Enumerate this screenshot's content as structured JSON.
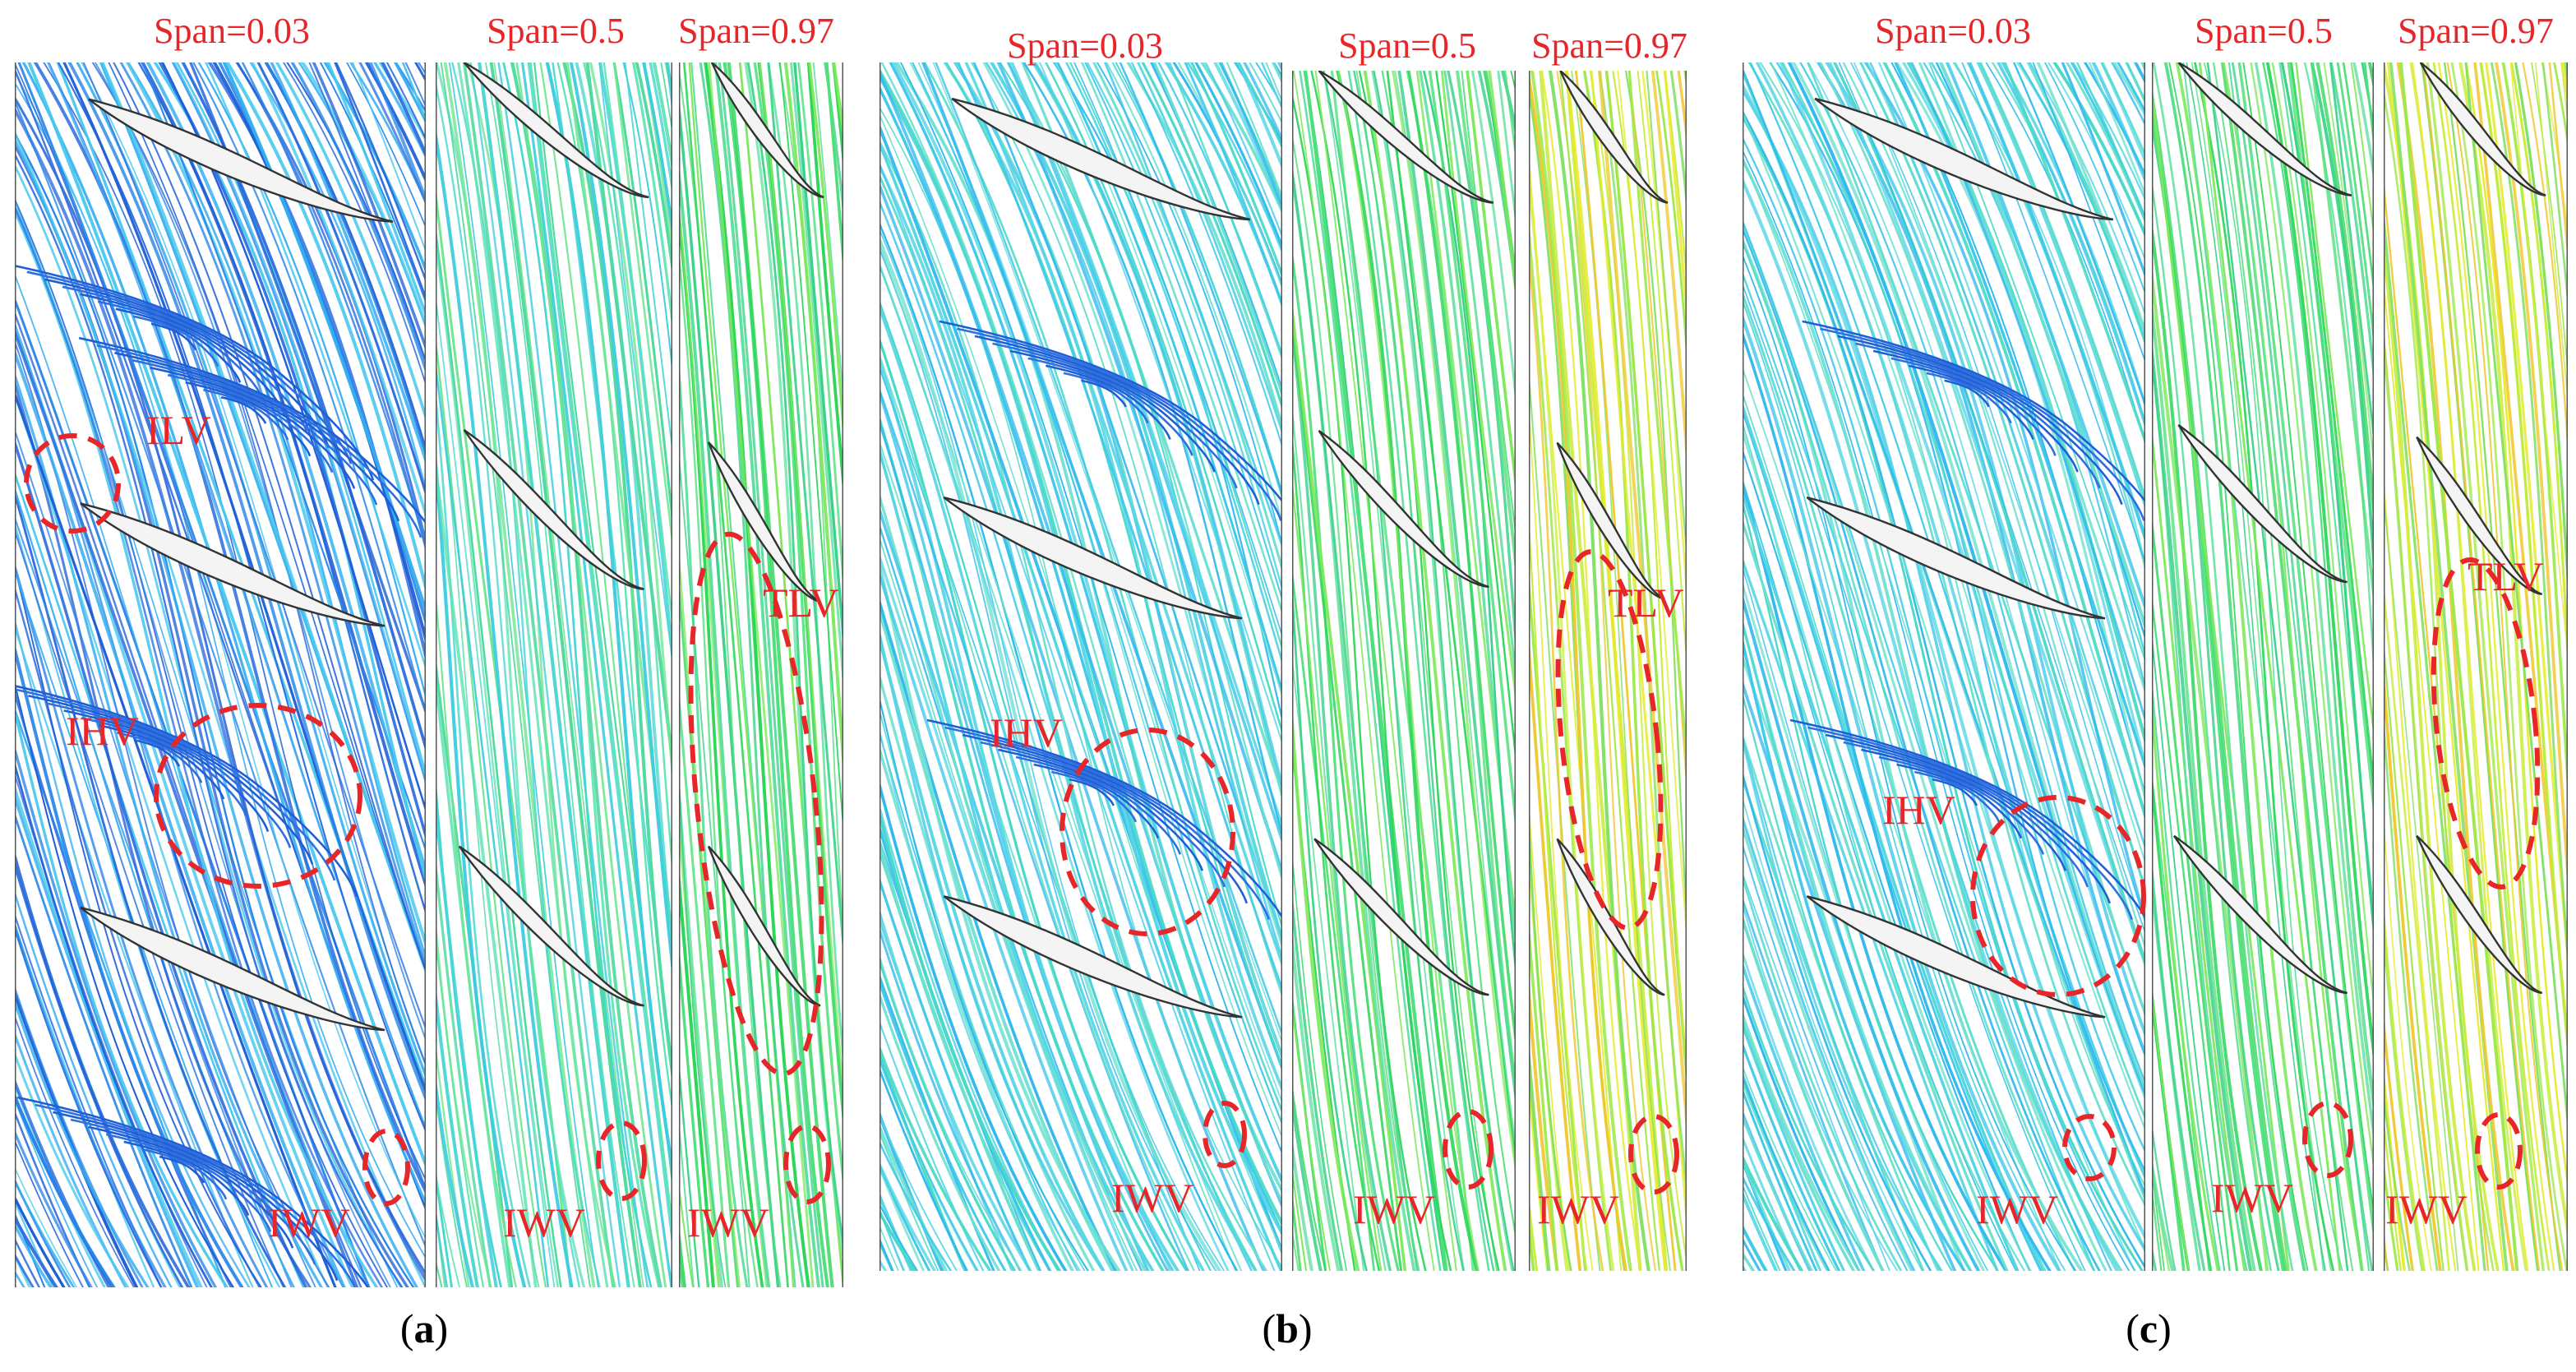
{
  "figure": {
    "groups": [
      {
        "id": "a",
        "label_open": "(",
        "label_letter": "a",
        "label_close": ")",
        "panels": [
          {
            "span_label": "Span=0.03",
            "palette": "blue",
            "vortex_strength": "high"
          },
          {
            "span_label": "Span=0.5",
            "palette": "cyan-green",
            "vortex_strength": "low"
          },
          {
            "span_label": "Span=0.97",
            "palette": "green",
            "vortex_strength": "low"
          }
        ],
        "annotations": [
          "ILV",
          "IHV",
          "IWV",
          "IWV",
          "IWV",
          "TLV"
        ]
      },
      {
        "id": "b",
        "label_open": "(",
        "label_letter": "b",
        "label_close": ")",
        "panels": [
          {
            "span_label": "Span=0.03",
            "palette": "cyan",
            "vortex_strength": "medium"
          },
          {
            "span_label": "Span=0.5",
            "palette": "green",
            "vortex_strength": "low"
          },
          {
            "span_label": "Span=0.97",
            "palette": "yellow-green",
            "vortex_strength": "low"
          }
        ],
        "annotations": [
          "IHV",
          "IWV",
          "IWV",
          "IWV",
          "TLV"
        ]
      },
      {
        "id": "c",
        "label_open": "(",
        "label_letter": "c",
        "label_close": ")",
        "panels": [
          {
            "span_label": "Span=0.03",
            "palette": "cyan",
            "vortex_strength": "medium"
          },
          {
            "span_label": "Span=0.5",
            "palette": "green",
            "vortex_strength": "low"
          },
          {
            "span_label": "Span=0.97",
            "palette": "yellow-green",
            "vortex_strength": "low"
          }
        ],
        "annotations": [
          "IHV",
          "IWV",
          "IWV",
          "IWV",
          "TLV"
        ]
      }
    ],
    "colors": {
      "annotation": "#e8262a",
      "blade_fill": "#f4f4f4",
      "blade_stroke": "#333333",
      "panel_border": "#555555",
      "blue": [
        "#1f5fd6",
        "#2a86e8",
        "#35aef0",
        "#46c8ee",
        "#2f6fe0"
      ],
      "cyan": [
        "#3cc7ea",
        "#55d6e4",
        "#4ad9c8",
        "#2fb8ee",
        "#6be0d0"
      ],
      "cyan-green": [
        "#44d6d0",
        "#5ee3b4",
        "#4fd9a0",
        "#70e690",
        "#3ccbe0"
      ],
      "green": [
        "#4fe07a",
        "#2ed65a",
        "#7ee85a",
        "#5fe0a0",
        "#38d088"
      ],
      "yellow-green": [
        "#9de84a",
        "#c8ec3c",
        "#e6ea2e",
        "#7ee060",
        "#f0c832"
      ]
    }
  }
}
